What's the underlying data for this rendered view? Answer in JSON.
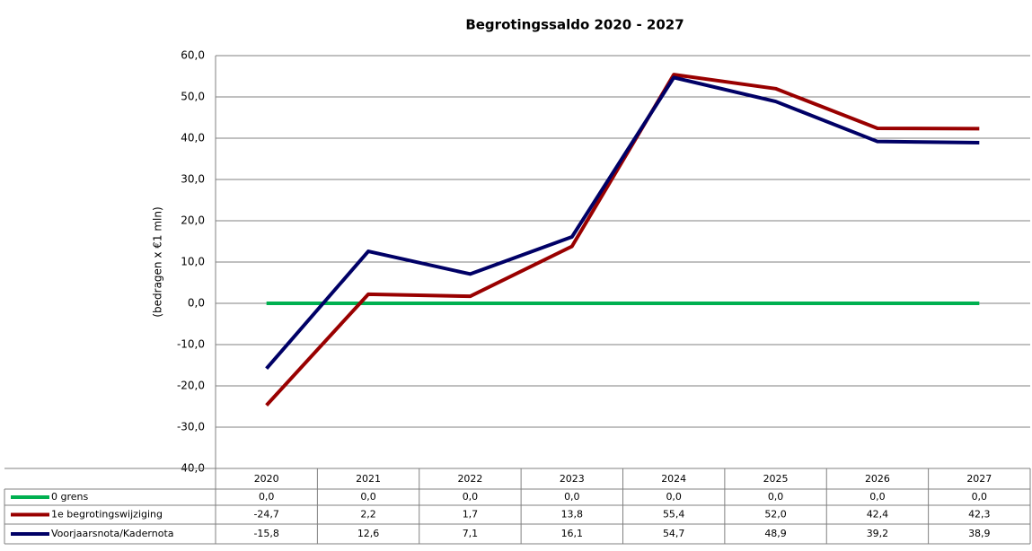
{
  "chart_data": {
    "type": "line",
    "title": "Begrotingssaldo  2020 - 2027",
    "y_label": "(bedragen x €1 mln)",
    "categories": [
      "2020",
      "2021",
      "2022",
      "2023",
      "2024",
      "2025",
      "2026",
      "2027"
    ],
    "series": [
      {
        "name": "0 grens",
        "color": "#00b050",
        "values": [
          0,
          0,
          0,
          0,
          0,
          0,
          0,
          0
        ],
        "value_labels": [
          "0,0",
          "0,0",
          "0,0",
          "0,0",
          "0,0",
          "0,0",
          "0,0",
          "0,0"
        ]
      },
      {
        "name": "1e begrotingswijziging",
        "color": "#990000",
        "values": [
          -24.7,
          2.2,
          1.7,
          13.8,
          55.4,
          52.0,
          42.4,
          42.3
        ],
        "value_labels": [
          "-24,7",
          "2,2",
          "1,7",
          "13,8",
          "55,4",
          "52,0",
          "42,4",
          "42,3"
        ]
      },
      {
        "name": "Voorjaarsnota/Kadernota",
        "color": "#000066",
        "values": [
          -15.8,
          12.6,
          7.1,
          16.1,
          54.7,
          48.9,
          39.2,
          38.9
        ],
        "value_labels": [
          "-15,8",
          "12,6",
          "7,1",
          "16,1",
          "54,7",
          "48,9",
          "39,2",
          "38,9"
        ]
      }
    ],
    "ylim": [
      -40,
      60
    ],
    "yticks": [
      {
        "value": -40,
        "label": "-40,0"
      },
      {
        "value": -30,
        "label": "-30,0"
      },
      {
        "value": -20,
        "label": "-20,0"
      },
      {
        "value": -10,
        "label": "-10,0"
      },
      {
        "value": 0,
        "label": "0,0"
      },
      {
        "value": 10,
        "label": "10,0"
      },
      {
        "value": 20,
        "label": "20,0"
      },
      {
        "value": 30,
        "label": "30,0"
      },
      {
        "value": 40,
        "label": "40,0"
      },
      {
        "value": 50,
        "label": "50,0"
      },
      {
        "value": 60,
        "label": "60,0"
      }
    ],
    "grid": true
  }
}
